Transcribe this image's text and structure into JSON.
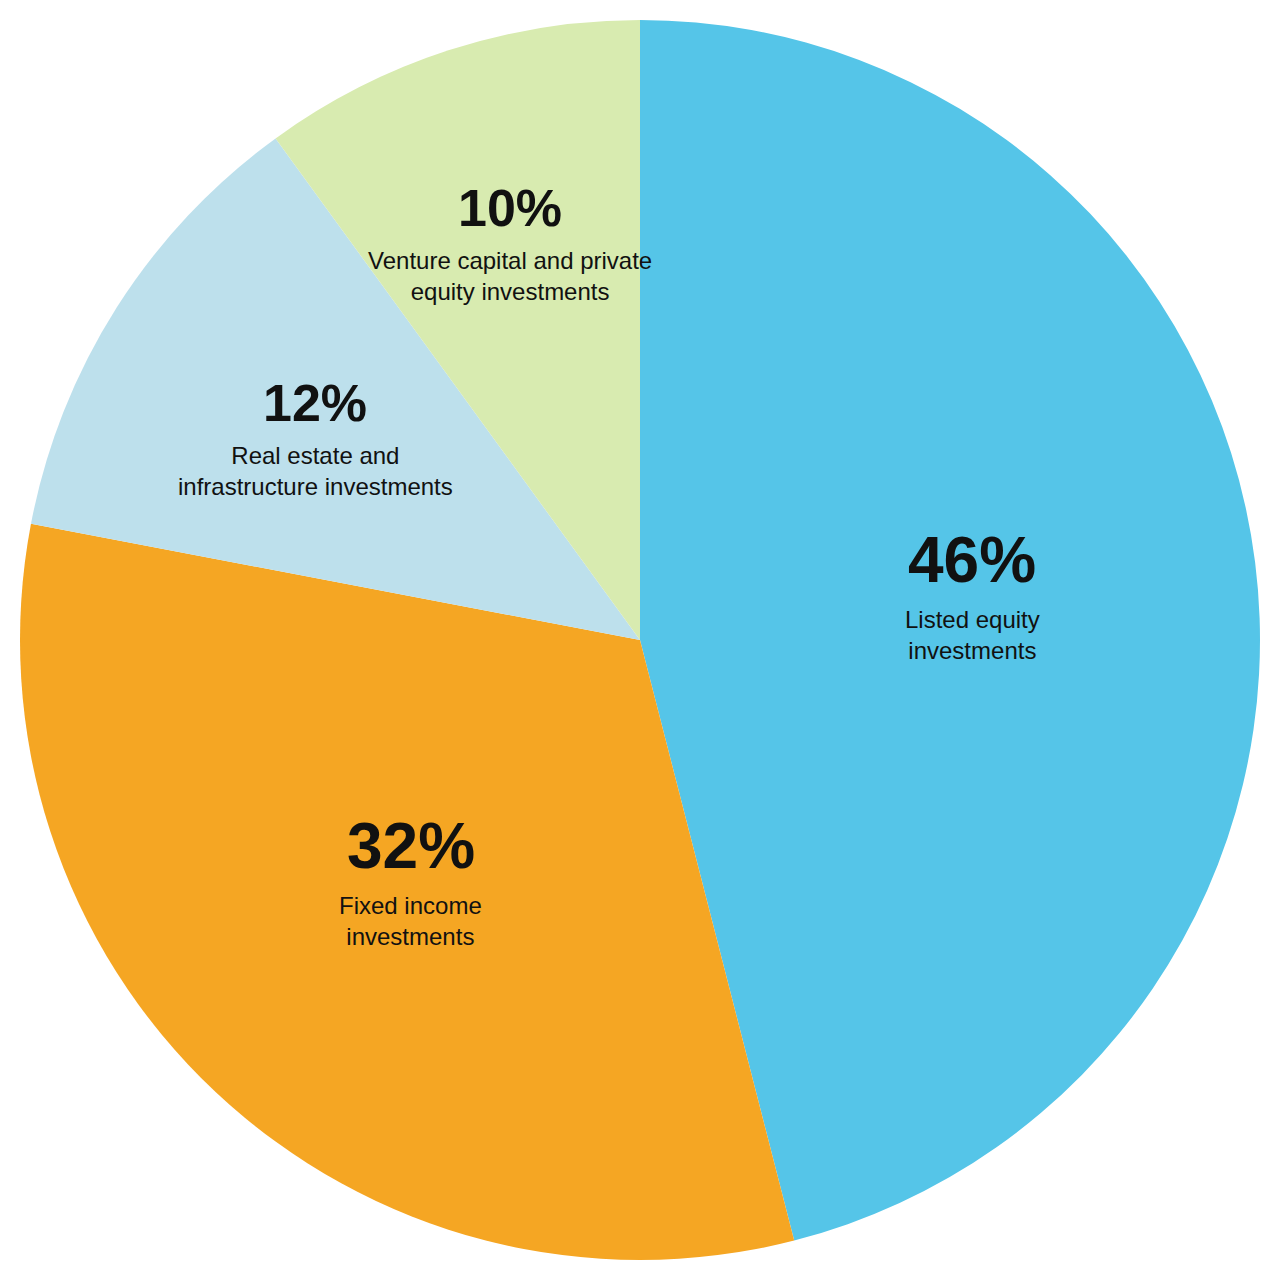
{
  "chart_data": {
    "type": "pie",
    "categories": [
      "Listed equity\ninvestments",
      "Fixed income\ninvestments",
      "Real estate and\ninfrastructure investments",
      "Venture capital and private\nequity investments"
    ],
    "values": [
      46,
      32,
      12,
      10
    ],
    "value_labels": [
      "46%",
      "32%",
      "12%",
      "10%"
    ],
    "colors": [
      "#55C5E8",
      "#F5A623",
      "#BDE0EC",
      "#D8EBB0"
    ],
    "data_labels": true
  }
}
